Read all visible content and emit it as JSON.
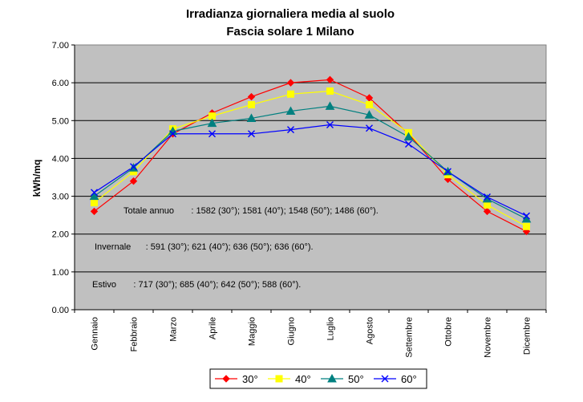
{
  "chart_data": {
    "type": "line",
    "title_line1": "Irradianza giornaliera media al suolo",
    "title_line2": "Fascia solare 1 Milano",
    "xlabel": "",
    "ylabel": "kWh/mq",
    "ylim": [
      0,
      7
    ],
    "yticks": [
      "0.00",
      "1.00",
      "2.00",
      "3.00",
      "4.00",
      "5.00",
      "6.00",
      "7.00"
    ],
    "grid": true,
    "plot_background": "#c0c0c0",
    "legend_placement": "bottom",
    "categories": [
      "Gennaio",
      "Febbraio",
      "Marzo",
      "Aprile",
      "Maggio",
      "Giugno",
      "Luglio",
      "Agosto",
      "Settembre",
      "Ottobre",
      "Novembre",
      "Dicembre"
    ],
    "series": [
      {
        "name": "30°",
        "color": "#ff0000",
        "marker": "diamond",
        "values": [
          2.6,
          3.4,
          4.65,
          5.2,
          5.63,
          6.0,
          6.08,
          5.6,
          4.65,
          3.45,
          2.6,
          2.07
        ]
      },
      {
        "name": "40°",
        "color": "#ffff00",
        "marker": "square",
        "values": [
          2.83,
          3.65,
          4.78,
          5.12,
          5.42,
          5.7,
          5.78,
          5.42,
          4.68,
          3.57,
          2.77,
          2.2
        ]
      },
      {
        "name": "50°",
        "color": "#008080",
        "marker": "triangle",
        "values": [
          3.0,
          3.75,
          4.72,
          4.93,
          5.06,
          5.25,
          5.38,
          5.15,
          4.57,
          3.65,
          2.93,
          2.4
        ]
      },
      {
        "name": "60°",
        "color": "#0000ff",
        "marker": "x",
        "values": [
          3.1,
          3.78,
          4.65,
          4.65,
          4.65,
          4.76,
          4.89,
          4.8,
          4.38,
          3.65,
          2.98,
          2.48
        ]
      }
    ],
    "annotations": [
      "Totale annuo       : 1582 (30°); 1581 (40°); 1548 (50°); 1486 (60°).",
      "Invernale      : 591 (30°); 621 (40°); 636 (50°); 636 (60°).",
      "Estivo       : 717 (30°); 685 (40°); 642 (50°); 588 (60°)."
    ]
  }
}
